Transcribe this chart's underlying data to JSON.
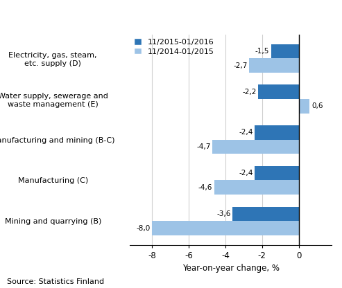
{
  "categories": [
    "Mining and quarrying (B)",
    "Manufacturing (C)",
    "Manufacturing and mining (B-C)",
    "Water supply, sewerage and\nwaste management (E)",
    "Electricity, gas, steam,\netc. supply (D)"
  ],
  "series1_label": "11/2015-01/2016",
  "series2_label": "11/2014-01/2015",
  "series1_values": [
    -3.6,
    -2.4,
    -2.4,
    -2.2,
    -1.5
  ],
  "series2_values": [
    -8.0,
    -4.6,
    -4.7,
    0.6,
    -2.7
  ],
  "series1_color": "#2E75B6",
  "series2_color": "#9DC3E6",
  "bar_height": 0.35,
  "xlim": [
    -9.2,
    1.8
  ],
  "xticks": [
    -8,
    -6,
    -4,
    -2,
    0
  ],
  "xlabel": "Year-on-year change, %",
  "source_text": "Source: Statistics Finland",
  "grid_color": "#d0d0d0",
  "background_color": "#ffffff",
  "label_fontsize": 8.0,
  "axis_fontsize": 8.5,
  "value_fontsize": 7.5
}
